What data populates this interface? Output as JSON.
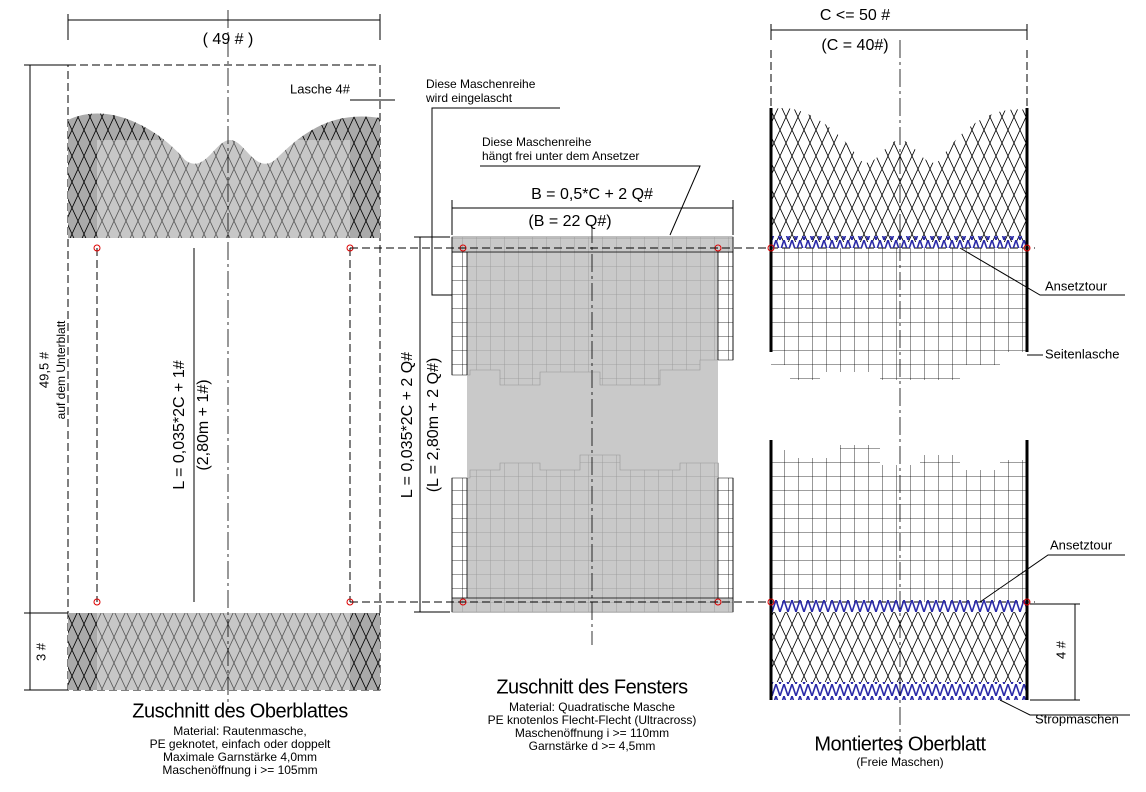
{
  "left": {
    "width_label": "( 49 # )",
    "lasche_label": "Lasche 4#",
    "height_label": "49,5 #",
    "height_note": "auf dem Unterblatt",
    "length_label": "L =  0,035*2C + 1#",
    "length_note": "(2,80m + 1#)",
    "bottom_label": "3 #",
    "title": "Zuschnitt des Oberblattes",
    "notes": [
      "Material: Rautenmasche,",
      "PE geknotet, einfach oder doppelt",
      "Maximale Garnstärke 4,0mm",
      "Maschenöffnung  i >= 105mm"
    ]
  },
  "middle": {
    "note_a": [
      "Diese Maschenreihe",
      "wird eingelascht"
    ],
    "note_b": [
      "Diese Maschenreihe",
      "hängt frei unter dem Ansetzer"
    ],
    "width_label": "B = 0,5*C  + 2 Q#",
    "width_note": "(B = 22 Q#)",
    "length_label": "L = 0,035*2C + 2 Q#",
    "length_note": "(L = 2,80m + 2 Q#)",
    "title": "Zuschnitt des Fensters",
    "notes": [
      "Material: Quadratische Masche",
      "PE knotenlos Flecht-Flecht (Ultracross)",
      "Maschenöffnung  i  >= 110mm",
      "Garnstärke d >= 4,5mm"
    ]
  },
  "right": {
    "width_label": "C <= 50  #",
    "width_note": "(C = 40#)",
    "labels": [
      "Ansetztour",
      "Seitenlasche",
      "Ansetztour",
      "Stropmaschen"
    ],
    "bottom_label": "4 #",
    "title": "Montiertes Oberblatt",
    "subtitle": "(Freie Maschen)"
  }
}
